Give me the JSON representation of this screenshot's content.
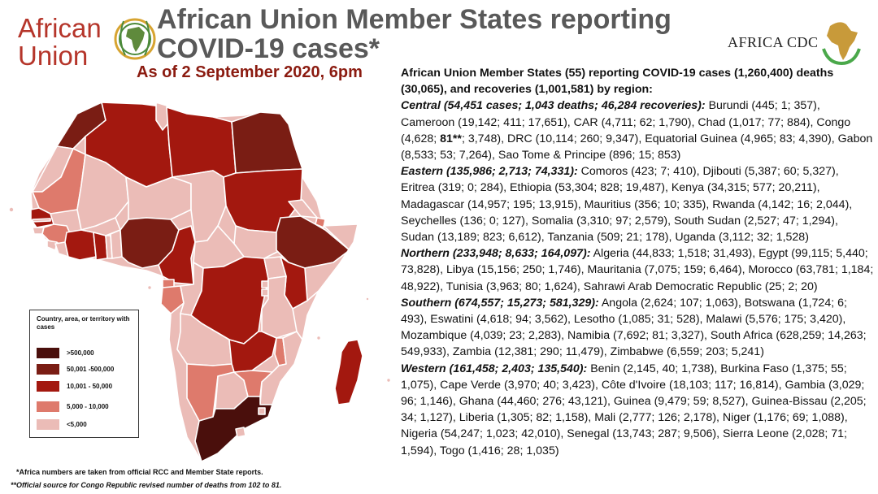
{
  "header": {
    "au_logo_line1": "African",
    "au_logo_line2": "Union",
    "title_line1": "African Union Member States reporting",
    "title_line2": "COVID-19 cases*",
    "subtitle": "As of 2 September 2020, 6pm",
    "cdc_logo_text": "AFRICA CDC"
  },
  "colors": {
    "gt500k": "#4a0f0c",
    "c50k_500k": "#7a1d14",
    "c10k_50k": "#a3180f",
    "c5k_10k": "#de7a6c",
    "lt5k": "#ebbcb7",
    "au_red": "#b5352a",
    "title_grey": "#595959",
    "subtitle_red": "#8b1b10"
  },
  "legend": {
    "title": "Country, area, or territory with cases",
    "items": [
      {
        "label": ">500,000",
        "color": "#4a0f0c"
      },
      {
        "label": "50,001 -500,000",
        "color": "#7a1d14"
      },
      {
        "label": "10,001 - 50,000",
        "color": "#a3180f"
      },
      {
        "label": "5,000 - 10,000",
        "color": "#de7a6c"
      },
      {
        "label": "<5,000",
        "color": "#ebbcb7"
      }
    ]
  },
  "footnotes": {
    "note1": "*Africa numbers are taken from official RCC and Member State reports.",
    "note2": "**Official source for Congo Republic revised number of deaths from 102 to 81."
  },
  "summary": {
    "intro": "African Union Member States (55) reporting COVID-19 cases (1,260,400) deaths (30,065), and recoveries (1,001,581) by region:",
    "regions": [
      {
        "heading": "Central (54,451 cases; 1,043 deaths; 46,284 recoveries):",
        "body_a": " Burundi (445; 1; 357), Cameroon (19,142; 411; 17,651), CAR (4,711; 62; 1,790), Chad (1,017; 77; 884), Congo (4,628; ",
        "bold": "81**",
        "body_b": "; 3,748), DRC (10,114; 260; 9,347), Equatorial Guinea (4,965; 83; 4,390), Gabon (8,533; 53; 7,264), Sao Tome & Principe (896; 15; 853)"
      },
      {
        "heading": "Eastern (135,986; 2,713; 74,331):",
        "body": " Comoros (423; 7; 410), Djibouti (5,387; 60; 5,327), Eritrea (319; 0; 284), Ethiopia (53,304; 828; 19,487), Kenya (34,315; 577; 20,211), Madagascar (14,957; 195; 13,915), Mauritius (356; 10; 335), Rwanda (4,142; 16; 2,044), Seychelles (136; 0; 127), Somalia (3,310; 97; 2,579), South Sudan (2,527; 47; 1,294), Sudan (13,189; 823; 6,612), Tanzania (509; 21; 178), Uganda (3,112; 32; 1,528)"
      },
      {
        "heading": "Northern (233,948; 8,633; 164,097):",
        "body": " Algeria (44,833; 1,518; 31,493), Egypt (99,115; 5,440; 73,828), Libya (15,156; 250; 1,746), Mauritania (7,075; 159; 6,464), Morocco (63,781; 1,184; 48,922), Tunisia (3,963; 80; 1,624), Sahrawi Arab Democratic Republic (25; 2; 20)"
      },
      {
        "heading": "Southern (674,557; 15,273; 581,329):",
        "body": " Angola (2,624; 107; 1,063), Botswana (1,724; 6; 493), Eswatini (4,618; 94; 3,562), Lesotho (1,085; 31; 528), Malawi (5,576; 175; 3,420), Mozambique (4,039; 23; 2,283), Namibia (7,692; 81; 3,327), South Africa (628,259; 14,263; 549,933), Zambia (12,381; 290; 11,479), Zimbabwe (6,559; 203; 5,241)"
      },
      {
        "heading": "Western (161,458; 2,403; 135,540):",
        "body": " Benin (2,145, 40; 1,738), Burkina Faso (1,375; 55; 1,075), Cape Verde (3,970; 40; 3,423), Côte d'Ivoire (18,103; 117; 16,814), Gambia (3,029; 96; 1,146), Ghana (44,460; 276; 43,121), Guinea (9,479; 59; 8,527), Guinea-Bissau (2,205; 34; 1,127), Liberia (1,305; 82; 1,158), Mali (2,777; 126; 2,178), Niger (1,176; 69; 1,088), Nigeria (54,247; 1,023; 42,010), Senegal (13,743; 287; 9,506), Sierra Leone (2,028; 71; 1,594), Togo (1,416; 28; 1,035)"
      }
    ]
  }
}
